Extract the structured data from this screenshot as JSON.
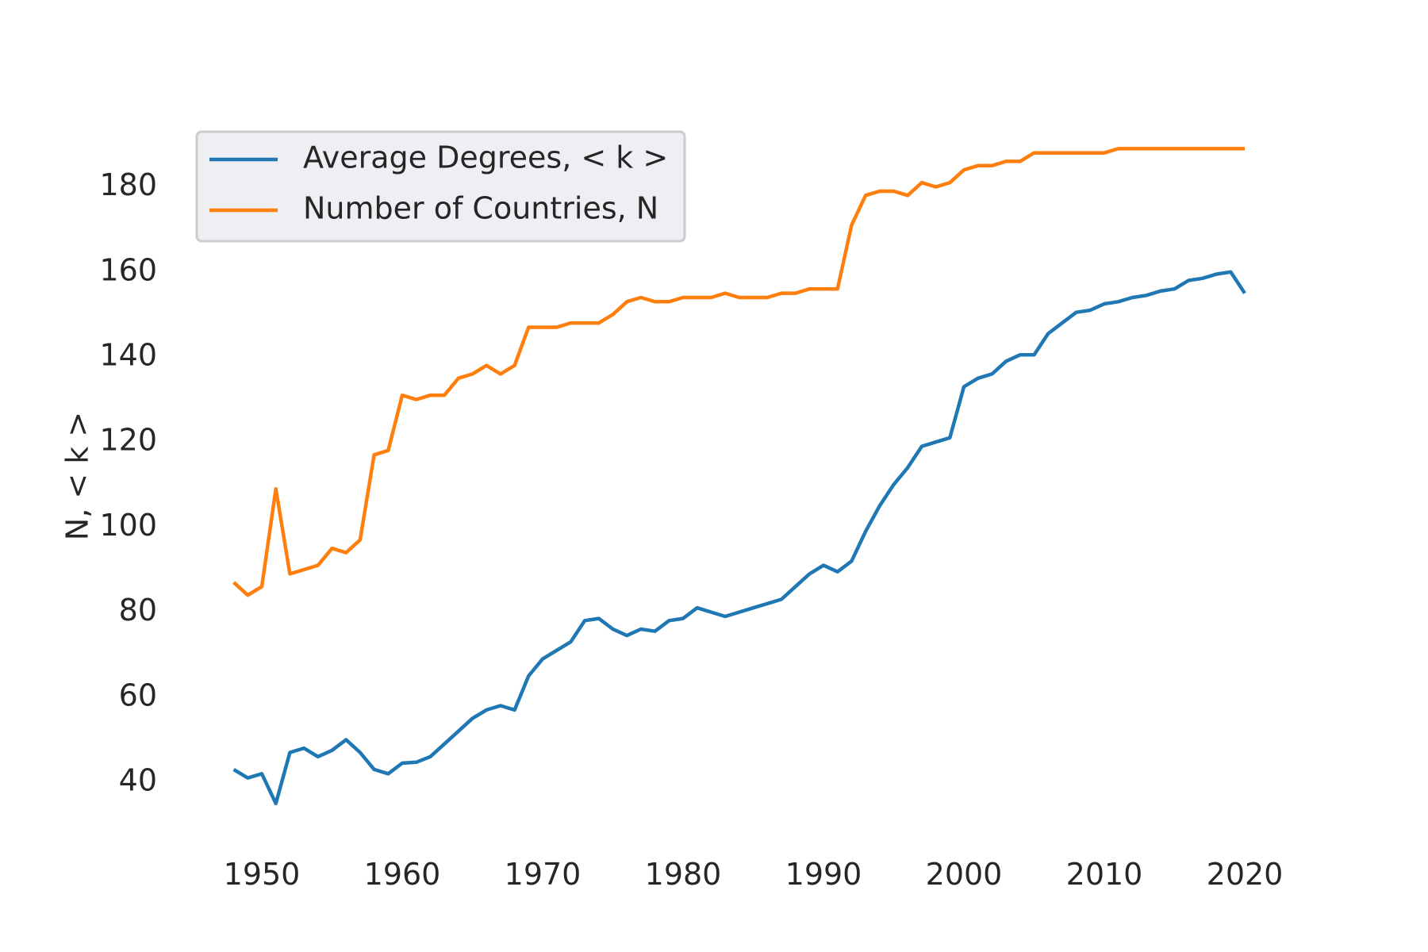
{
  "chart_data": {
    "type": "line",
    "title": "",
    "xlabel": "",
    "ylabel": "N, < k >",
    "xlim": [
      1946,
      2023
    ],
    "ylim": [
      25,
      195
    ],
    "xticks": [
      1950,
      1960,
      1970,
      1980,
      1990,
      2000,
      2010,
      2020
    ],
    "yticks": [
      40,
      60,
      80,
      100,
      120,
      140,
      160,
      180
    ],
    "grid": false,
    "legend_position": "top-left",
    "x": [
      1948,
      1949,
      1950,
      1951,
      1952,
      1953,
      1954,
      1955,
      1956,
      1957,
      1958,
      1959,
      1960,
      1961,
      1962,
      1963,
      1964,
      1965,
      1966,
      1967,
      1968,
      1969,
      1970,
      1971,
      1972,
      1973,
      1974,
      1975,
      1976,
      1977,
      1978,
      1979,
      1980,
      1981,
      1982,
      1983,
      1984,
      1985,
      1986,
      1987,
      1988,
      1989,
      1990,
      1991,
      1992,
      1993,
      1994,
      1995,
      1996,
      1997,
      1998,
      1999,
      2000,
      2001,
      2002,
      2003,
      2004,
      2005,
      2006,
      2007,
      2008,
      2009,
      2010,
      2011,
      2012,
      2013,
      2014,
      2015,
      2016,
      2017,
      2018,
      2019,
      2020
    ],
    "series": [
      {
        "name": "Average Degrees,  < k >",
        "color": "#1f77b4",
        "values": [
          43,
          41,
          42,
          35,
          47,
          48,
          46,
          47.5,
          50,
          47,
          43,
          42,
          44.5,
          44.7,
          46,
          49,
          52,
          55,
          57,
          58,
          57,
          65,
          69,
          71,
          73,
          78,
          78.5,
          76,
          74.5,
          76,
          75.5,
          78,
          78.5,
          81,
          80,
          79,
          80,
          81,
          82,
          83,
          86,
          89,
          91,
          89.5,
          92,
          99,
          105,
          110,
          114,
          119,
          120,
          121,
          133,
          135,
          136,
          139,
          140.5,
          140.5,
          145.5,
          148,
          150.5,
          151,
          152.5,
          153,
          154,
          154.5,
          155.5,
          156,
          158,
          158.5,
          159.5,
          160,
          155
        ]
      },
      {
        "name": "Number of Countries, N",
        "color": "#ff7f0e",
        "values": [
          87,
          84,
          86,
          109,
          89,
          90,
          91,
          95,
          94,
          97,
          117,
          118,
          131,
          130,
          131,
          131,
          135,
          136,
          138,
          136,
          138,
          147,
          147,
          147,
          148,
          148,
          148,
          150,
          153,
          154,
          153,
          153,
          154,
          154,
          154,
          155,
          154,
          154,
          154,
          155,
          155,
          156,
          156,
          156,
          171,
          178,
          179,
          179,
          178,
          181,
          180,
          181,
          184,
          185,
          185,
          186,
          186,
          188,
          188,
          188,
          188,
          188,
          188,
          189,
          189,
          189,
          189,
          189,
          189,
          189,
          189,
          189,
          189
        ]
      }
    ]
  }
}
